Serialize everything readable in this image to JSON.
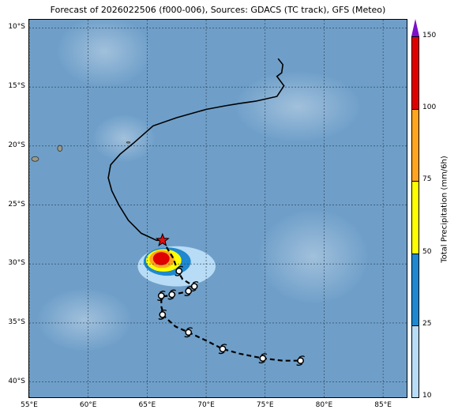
{
  "map": {
    "title": "Forecast of 2026022506 (f000-006), Sources: GDACS (TC track), GFS (Meteo)",
    "lon_range": [
      55,
      87
    ],
    "lat_range": [
      -41.3,
      -9.3
    ],
    "x_ticks": [
      {
        "lon": 55,
        "label": "55°E"
      },
      {
        "lon": 60,
        "label": "60°E"
      },
      {
        "lon": 65,
        "label": "65°E"
      },
      {
        "lon": 70,
        "label": "70°E"
      },
      {
        "lon": 75,
        "label": "75°E"
      },
      {
        "lon": 80,
        "label": "80°E"
      },
      {
        "lon": 85,
        "label": "85°E"
      }
    ],
    "y_ticks": [
      {
        "lat": -10,
        "label": "10°S"
      },
      {
        "lat": -15,
        "label": "15°S"
      },
      {
        "lat": -20,
        "label": "20°S"
      },
      {
        "lat": -25,
        "label": "25°S"
      },
      {
        "lat": -30,
        "label": "30°S"
      },
      {
        "lat": -35,
        "label": "35°S"
      },
      {
        "lat": -40,
        "label": "40°S"
      }
    ],
    "gridlines": true,
    "ocean_color": "#6f9fc9"
  },
  "colorbar": {
    "label": "Total Precipitation (mm/6h)",
    "ticks": [
      "150",
      "100",
      "75",
      "50",
      "25",
      "10"
    ],
    "bands": [
      {
        "from": 10,
        "to": 25,
        "color": "#b8dcf5"
      },
      {
        "from": 25,
        "to": 50,
        "color": "#1e88d0"
      },
      {
        "from": 50,
        "to": 75,
        "color": "#ffff00"
      },
      {
        "from": 75,
        "to": 100,
        "color": "#ffa520"
      },
      {
        "from": 100,
        "to": 150,
        "color": "#e00000"
      },
      {
        "from": 150,
        "to": null,
        "color": "#7d10c8"
      }
    ]
  },
  "track": {
    "past": [
      [
        76.1,
        -12.6
      ],
      [
        76.5,
        -13.1
      ],
      [
        76.4,
        -13.8
      ],
      [
        76.0,
        -14.1
      ],
      [
        76.6,
        -14.9
      ],
      [
        76.0,
        -15.8
      ],
      [
        74.2,
        -16.2
      ],
      [
        72.8,
        -16.4
      ],
      [
        71.6,
        -16.6
      ],
      [
        70.0,
        -16.9
      ],
      [
        67.5,
        -17.6
      ],
      [
        65.5,
        -18.3
      ],
      [
        63.8,
        -19.8
      ],
      [
        62.7,
        -20.7
      ],
      [
        61.9,
        -21.6
      ],
      [
        61.7,
        -22.7
      ],
      [
        62.0,
        -23.8
      ],
      [
        62.6,
        -25.0
      ],
      [
        63.4,
        -26.3
      ],
      [
        64.5,
        -27.4
      ],
      [
        65.8,
        -28.0
      ],
      [
        66.2,
        -28.0
      ]
    ],
    "current_position": [
      66.3,
      -28.0
    ],
    "forecast": [
      [
        66.3,
        -28.0
      ],
      [
        67.2,
        -29.5
      ],
      [
        67.6,
        -30.6
      ],
      [
        68.0,
        -31.3
      ],
      [
        69.0,
        -31.9
      ],
      [
        68.6,
        -32.3
      ],
      [
        67.2,
        -32.6
      ],
      [
        66.2,
        -32.8
      ],
      [
        66.2,
        -33.6
      ],
      [
        66.4,
        -34.4
      ],
      [
        67.4,
        -35.3
      ],
      [
        68.5,
        -35.8
      ],
      [
        70.0,
        -36.5
      ],
      [
        71.4,
        -37.2
      ],
      [
        72.8,
        -37.6
      ],
      [
        74.8,
        -38.0
      ],
      [
        76.5,
        -38.2
      ],
      [
        78.0,
        -38.2
      ]
    ],
    "forecast_symbols": [
      [
        67.7,
        -30.6
      ],
      [
        69.0,
        -31.9
      ],
      [
        68.5,
        -32.3
      ],
      [
        67.1,
        -32.6
      ],
      [
        66.2,
        -32.7
      ],
      [
        66.3,
        -34.3
      ],
      [
        68.5,
        -35.8
      ],
      [
        71.4,
        -37.2
      ],
      [
        74.8,
        -38.0
      ],
      [
        78.0,
        -38.2
      ]
    ]
  },
  "precipitation": [
    {
      "band": 0,
      "center": [
        67.5,
        -30.2
      ],
      "rx": 3.3,
      "ry": 1.7
    },
    {
      "band": 1,
      "center": [
        66.7,
        -29.8
      ],
      "rx": 2.0,
      "ry": 1.2
    },
    {
      "band": 2,
      "center": [
        66.4,
        -29.7
      ],
      "rx": 1.5,
      "ry": 0.95
    },
    {
      "band": 3,
      "center": [
        66.25,
        -29.6
      ],
      "rx": 1.05,
      "ry": 0.75
    },
    {
      "band": 4,
      "center": [
        66.2,
        -29.55
      ],
      "rx": 0.7,
      "ry": 0.55
    }
  ],
  "islands": [
    {
      "name": "",
      "lonlat": [
        55.5,
        -21.1
      ],
      "rx": 0.3,
      "ry": 0.2
    },
    {
      "name": "",
      "lonlat": [
        57.6,
        -20.2
      ],
      "rx": 0.2,
      "ry": 0.25
    },
    {
      "name": "",
      "lonlat": [
        63.4,
        -19.7
      ],
      "rx": 0.15,
      "ry": 0.05
    }
  ]
}
